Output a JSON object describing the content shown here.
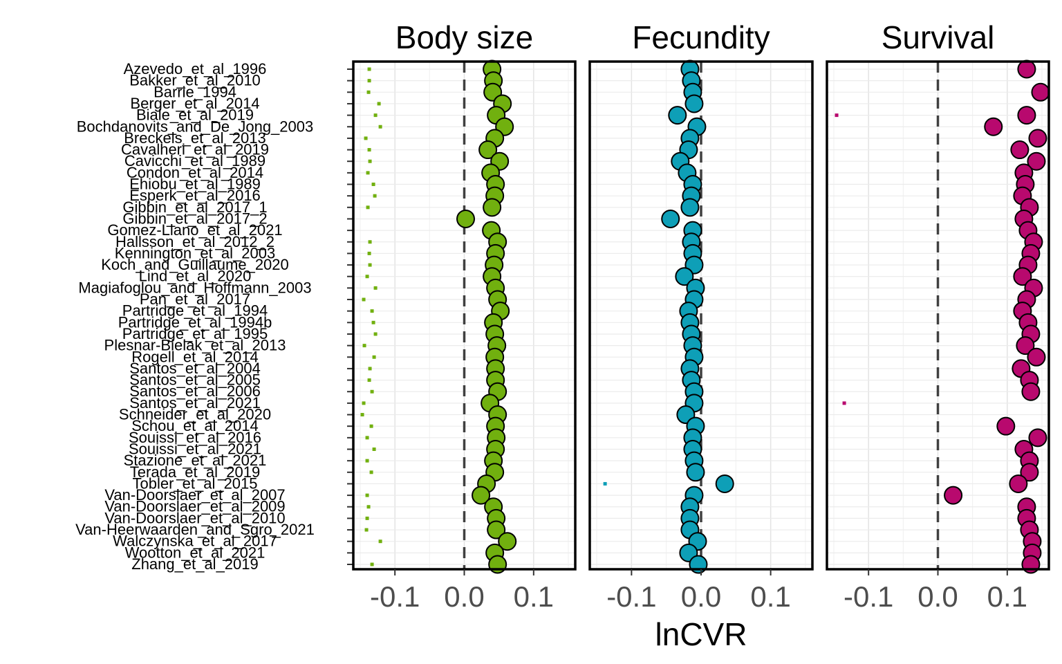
{
  "chart_data": {
    "type": "scatter",
    "xlabel": "lnCVR",
    "xlim": [
      -0.16,
      0.16
    ],
    "xticks": [
      "-0.1",
      "0.0",
      "0.1"
    ],
    "xtick_values": [
      -0.1,
      0.0,
      0.1
    ],
    "reference_line": 0,
    "grid": true,
    "marker_color": "#000000",
    "studies": [
      "Azevedo_et_al_1996",
      "Bakker_et_al_2010",
      "Barrie_1994",
      "Berger_et_al_2014",
      "Biale_et_al_2019",
      "Bochdanovits_and_De_Jong_2003",
      "Breckels_et_al_2013",
      "Cavalheri_et_al_2019",
      "Cavicchi_et_al_1989",
      "Condon_et_al_2014",
      "Ehiobu_et_al_1989",
      "Esperk_et_al_2016",
      "Gibbin_et_al_2017_1",
      "Gibbin_et_al_2017_2",
      "Gomez-Llano_et_al_2021",
      "Hallsson_et_al_2012_2",
      "Kennington_et_al_2003",
      "Koch_and_Guillaume_2020",
      "Lind_et_al_2020",
      "Magiafoglou_and_Hoffmann_2003",
      "Pan_et_al_2017",
      "Partridge_et_al_1994",
      "Partridge_et_al_1994b",
      "Partridge_et_al_1995",
      "Plesnar-Bielak_et_al_2013",
      "Rogell_et_al_2014",
      "Santos_et_al_2004",
      "Santos_et_al_2005",
      "Santos_et_al_2006",
      "Santos_et_al_2021",
      "Schneider_et_al_2020",
      "Schou_et_al_2014",
      "Souissi_et_al_2016",
      "Souissi_et_al_2021",
      "Stazione_et_al_2021",
      "Terada_et_al_2019",
      "Tobler_et_al_2015",
      "Van-Doorslaer_et_al_2007",
      "Van-Doorslaer_et_al_2009",
      "Van-Doorslaer_et_al_2010",
      "Van-Heerwaarden_and_Sgro_2021",
      "Walczynska_et_al_2017",
      "Wootton_et_al_2021",
      "Zhang_et_al_2019"
    ],
    "facets": [
      {
        "title": "Body size",
        "color": "#71b00f",
        "estimates": [
          0.04,
          0.042,
          0.041,
          0.055,
          0.046,
          0.058,
          0.044,
          0.034,
          0.051,
          0.038,
          0.045,
          0.044,
          0.04,
          0.002,
          0.039,
          0.048,
          0.045,
          0.043,
          0.04,
          0.045,
          0.048,
          0.052,
          0.042,
          0.044,
          0.047,
          0.044,
          0.045,
          0.045,
          0.048,
          0.037,
          0.048,
          0.045,
          0.046,
          0.045,
          0.042,
          0.044,
          0.032,
          0.024,
          0.042,
          0.046,
          0.046,
          0.062,
          0.044,
          0.048
        ],
        "point_small": [
          -0.137,
          -0.137,
          -0.138,
          -0.123,
          -0.128,
          -0.121,
          -0.142,
          -0.137,
          -0.136,
          -0.139,
          -0.131,
          -0.129,
          -0.139,
          null,
          null,
          -0.136,
          -0.137,
          -0.136,
          -0.14,
          -0.128,
          -0.145,
          -0.133,
          -0.131,
          -0.128,
          -0.144,
          -0.13,
          -0.136,
          -0.137,
          -0.133,
          -0.145,
          -0.147,
          -0.134,
          -0.14,
          -0.13,
          -0.14,
          -0.134,
          null,
          -0.14,
          -0.138,
          -0.14,
          -0.141,
          -0.121,
          null,
          -0.133
        ]
      },
      {
        "title": "Fecundity",
        "color": "#0e9fb7",
        "estimates": [
          -0.016,
          -0.014,
          -0.012,
          -0.01,
          -0.034,
          -0.006,
          -0.016,
          -0.018,
          -0.03,
          -0.02,
          -0.012,
          -0.014,
          -0.016,
          -0.044,
          -0.012,
          -0.014,
          -0.012,
          -0.01,
          -0.024,
          -0.008,
          -0.01,
          -0.018,
          -0.016,
          -0.014,
          -0.012,
          -0.01,
          -0.016,
          -0.014,
          -0.01,
          -0.01,
          -0.022,
          -0.008,
          -0.012,
          -0.012,
          -0.01,
          -0.008,
          0.034,
          -0.01,
          -0.016,
          -0.016,
          -0.016,
          -0.005,
          -0.018,
          -0.004
        ],
        "point_small": [
          null,
          null,
          null,
          null,
          null,
          null,
          null,
          null,
          null,
          null,
          null,
          null,
          null,
          null,
          null,
          null,
          null,
          null,
          null,
          null,
          null,
          null,
          null,
          null,
          null,
          null,
          null,
          null,
          null,
          null,
          null,
          null,
          null,
          null,
          null,
          null,
          -0.138,
          null,
          null,
          null,
          null,
          null,
          null,
          null
        ]
      },
      {
        "title": "Survival",
        "color": "#b8096e",
        "estimates": [
          0.128,
          null,
          0.148,
          null,
          0.128,
          0.08,
          0.144,
          0.118,
          0.142,
          0.124,
          0.126,
          0.122,
          0.132,
          0.124,
          0.13,
          0.138,
          0.134,
          0.13,
          0.122,
          0.138,
          0.128,
          0.122,
          0.13,
          0.134,
          0.126,
          0.142,
          0.12,
          0.132,
          0.134,
          null,
          null,
          0.098,
          0.144,
          0.124,
          0.132,
          0.132,
          0.116,
          0.022,
          0.128,
          0.128,
          0.132,
          0.136,
          0.136,
          0.134
        ],
        "point_small": [
          null,
          null,
          null,
          null,
          -0.146,
          null,
          null,
          null,
          null,
          null,
          null,
          null,
          null,
          null,
          null,
          null,
          null,
          null,
          null,
          null,
          null,
          null,
          null,
          null,
          null,
          null,
          null,
          null,
          null,
          -0.135,
          null,
          null,
          null,
          null,
          null,
          null,
          null,
          null,
          null,
          null,
          null,
          null,
          null,
          null
        ]
      }
    ]
  }
}
